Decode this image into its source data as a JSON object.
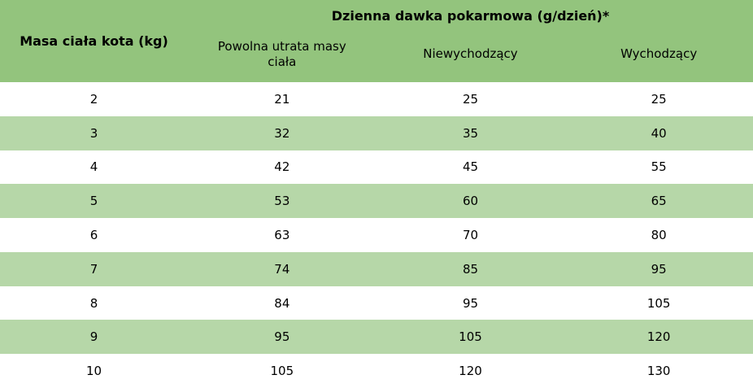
{
  "colors": {
    "header_green": "#93C47D",
    "stripe_green": "#B6D7A8",
    "row_white": "#FFFFFF",
    "text": "#000000"
  },
  "chart_data": {
    "type": "table",
    "title": "Dzienna dawka pokarmowa (g/dzień)*",
    "row_header": "Masa ciała kota (kg)",
    "columns": [
      "Powolna utrata masy ciała",
      "Niewychodzący",
      "Wychodzący"
    ],
    "rows": [
      [
        "2",
        "21",
        "25",
        "25"
      ],
      [
        "3",
        "32",
        "35",
        "40"
      ],
      [
        "4",
        "42",
        "45",
        "55"
      ],
      [
        "5",
        "53",
        "60",
        "65"
      ],
      [
        "6",
        "63",
        "70",
        "80"
      ],
      [
        "7",
        "74",
        "85",
        "95"
      ],
      [
        "8",
        "84",
        "95",
        "105"
      ],
      [
        "9",
        "95",
        "105",
        "120"
      ],
      [
        "10",
        "105",
        "120",
        "130"
      ]
    ],
    "layout": {
      "header_background": "#93C47D",
      "alternating_row_background": "#B6D7A8",
      "striped_rows": [
        "3",
        "5",
        "7",
        "9"
      ]
    }
  }
}
